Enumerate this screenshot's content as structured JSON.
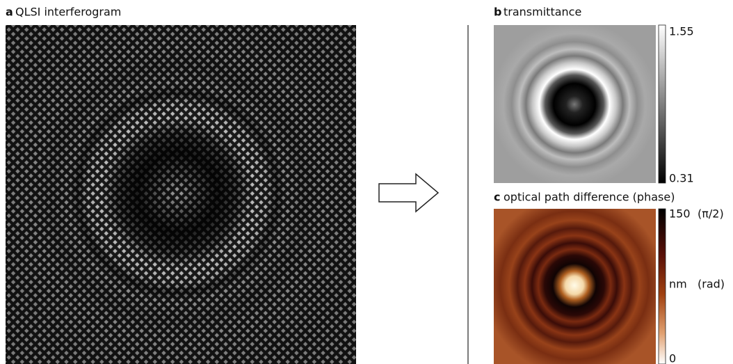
{
  "panels": [
    {
      "letter": "a",
      "title": "QLSI interferogram"
    },
    {
      "letter": "b",
      "title": "transmittance",
      "colorbar": {
        "top": "1.55",
        "bottom": "0.31"
      }
    },
    {
      "letter": "c",
      "title": "optical path difference (phase)",
      "colorbar": {
        "top": "150",
        "top_alt": "(π/2)",
        "middle": "nm",
        "middle_alt": "(rad)",
        "bottom": "0"
      }
    }
  ]
}
